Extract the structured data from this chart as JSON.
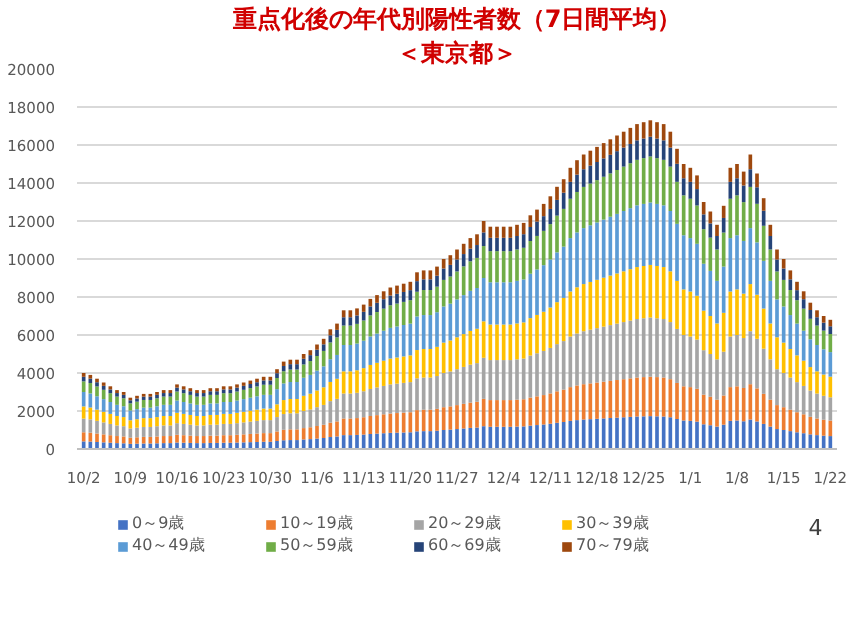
{
  "chart_data": {
    "type": "bar",
    "stacked": true,
    "title": "重点化後の年代別陽性者数（7日間平均）",
    "subtitle": "＜東京都＞",
    "annotations": [
      "4"
    ],
    "categories": [
      "10/2",
      null,
      null,
      null,
      null,
      null,
      null,
      "10/9",
      null,
      null,
      null,
      null,
      null,
      null,
      "10/16",
      null,
      null,
      null,
      null,
      null,
      null,
      "10/23",
      null,
      null,
      null,
      null,
      null,
      null,
      "10/30",
      null,
      null,
      null,
      null,
      null,
      null,
      "11/6",
      null,
      null,
      null,
      null,
      null,
      null,
      "11/13",
      null,
      null,
      null,
      null,
      null,
      null,
      "11/20",
      null,
      null,
      null,
      null,
      null,
      null,
      "11/27",
      null,
      null,
      null,
      null,
      null,
      null,
      "12/4",
      null,
      null,
      null,
      null,
      null,
      null,
      "12/11",
      null,
      null,
      null,
      null,
      null,
      null,
      "12/18",
      null,
      null,
      null,
      null,
      null,
      null,
      "12/25",
      null,
      null,
      null,
      null,
      null,
      null,
      "1/1",
      null,
      null,
      null,
      null,
      null,
      null,
      "1/8",
      null,
      null,
      null,
      null,
      null,
      null,
      "1/15",
      null,
      null,
      null,
      null,
      null,
      null,
      "1/22"
    ],
    "ylim": [
      0,
      20000
    ],
    "yticks": [
      0,
      2000,
      4000,
      6000,
      8000,
      10000,
      12000,
      14000,
      16000,
      18000,
      20000
    ],
    "grid": "y",
    "legend": "bottom",
    "series": [
      {
        "name": "0～9歳",
        "color": "#4472c4",
        "values": [
          400,
          390,
          370,
          350,
          330,
          310,
          300,
          270,
          280,
          290,
          290,
          300,
          310,
          310,
          340,
          330,
          320,
          310,
          310,
          320,
          320,
          330,
          330,
          340,
          350,
          360,
          370,
          380,
          380,
          420,
          460,
          470,
          470,
          500,
          520,
          550,
          580,
          630,
          660,
          730,
          730,
          740,
          760,
          790,
          810,
          830,
          850,
          860,
          870,
          880,
          930,
          940,
          940,
          960,
          1000,
          1020,
          1050,
          1080,
          1110,
          1130,
          1200,
          1170,
          1170,
          1170,
          1170,
          1180,
          1190,
          1230,
          1260,
          1290,
          1330,
          1380,
          1420,
          1480,
          1520,
          1550,
          1570,
          1590,
          1610,
          1630,
          1650,
          1670,
          1690,
          1710,
          1720,
          1730,
          1720,
          1710,
          1670,
          1580,
          1500,
          1480,
          1440,
          1300,
          1250,
          1180,
          1280,
          1480,
          1500,
          1460,
          1550,
          1450,
          1320,
          1180,
          1050,
          1000,
          940,
          880,
          830,
          770,
          730,
          700,
          680
        ]
      },
      {
        "name": "10～19歳",
        "color": "#ed7d31",
        "values": [
          480,
          468,
          444,
          420,
          396,
          372,
          360,
          324,
          336,
          348,
          348,
          360,
          372,
          372,
          408,
          396,
          384,
          372,
          372,
          384,
          384,
          396,
          396,
          408,
          420,
          432,
          444,
          456,
          456,
          504,
          552,
          564,
          564,
          600,
          624,
          660,
          696,
          756,
          792,
          876,
          876,
          888,
          912,
          948,
          972,
          996,
          1020,
          1032,
          1044,
          1056,
          1116,
          1128,
          1128,
          1152,
          1200,
          1224,
          1260,
          1296,
          1332,
          1356,
          1440,
          1404,
          1404,
          1404,
          1404,
          1416,
          1428,
          1476,
          1512,
          1548,
          1596,
          1656,
          1704,
          1776,
          1824,
          1860,
          1884,
          1908,
          1932,
          1956,
          1980,
          2004,
          2028,
          2052,
          2064,
          2076,
          2064,
          2052,
          2004,
          1896,
          1800,
          1776,
          1728,
          1560,
          1500,
          1416,
          1536,
          1776,
          1800,
          1752,
          1860,
          1740,
          1584,
          1416,
          1260,
          1200,
          1128,
          1056,
          996,
          924,
          876,
          840,
          816
        ]
      },
      {
        "name": "20～29歳",
        "color": "#a5a5a5",
        "values": [
          720,
          702,
          666,
          630,
          594,
          558,
          540,
          486,
          504,
          522,
          522,
          540,
          558,
          558,
          612,
          594,
          576,
          558,
          558,
          576,
          576,
          594,
          594,
          612,
          630,
          648,
          666,
          684,
          684,
          756,
          828,
          846,
          846,
          900,
          936,
          990,
          1044,
          1134,
          1188,
          1314,
          1314,
          1332,
          1368,
          1422,
          1458,
          1494,
          1530,
          1548,
          1566,
          1584,
          1674,
          1692,
          1692,
          1728,
          1800,
          1836,
          1890,
          1944,
          1998,
          2034,
          2160,
          2106,
          2106,
          2106,
          2106,
          2124,
          2142,
          2214,
          2268,
          2322,
          2394,
          2484,
          2556,
          2664,
          2736,
          2790,
          2826,
          2862,
          2898,
          2934,
          2970,
          3006,
          3042,
          3078,
          3096,
          3114,
          3096,
          3078,
          3006,
          2844,
          2700,
          2664,
          2592,
          2340,
          2250,
          2124,
          2304,
          2664,
          2700,
          2628,
          2790,
          2610,
          2376,
          2124,
          1890,
          1800,
          1692,
          1584,
          1494,
          1386,
          1314,
          1260,
          1224
        ]
      },
      {
        "name": "30～39歳",
        "color": "#ffc000",
        "values": [
          640,
          624,
          592,
          560,
          528,
          496,
          480,
          432,
          448,
          464,
          464,
          480,
          496,
          496,
          544,
          528,
          512,
          496,
          496,
          512,
          512,
          528,
          528,
          544,
          560,
          576,
          592,
          608,
          608,
          672,
          736,
          752,
          752,
          800,
          832,
          880,
          928,
          1008,
          1056,
          1168,
          1168,
          1184,
          1216,
          1264,
          1296,
          1328,
          1360,
          1376,
          1392,
          1408,
          1488,
          1504,
          1504,
          1536,
          1600,
          1632,
          1680,
          1728,
          1776,
          1808,
          1920,
          1872,
          1872,
          1872,
          1872,
          1888,
          1904,
          1968,
          2016,
          2064,
          2128,
          2208,
          2272,
          2368,
          2432,
          2480,
          2512,
          2544,
          2576,
          2608,
          2640,
          2672,
          2704,
          2736,
          2752,
          2768,
          2752,
          2736,
          2672,
          2528,
          2400,
          2368,
          2304,
          2080,
          2000,
          1888,
          2048,
          2368,
          2400,
          2336,
          2480,
          2320,
          2112,
          1888,
          1680,
          1600,
          1504,
          1408,
          1328,
          1232,
          1168,
          1120,
          1088
        ]
      },
      {
        "name": "40～49歳",
        "color": "#5b9bd5",
        "values": [
          760,
          741,
          703,
          665,
          627,
          589,
          570,
          513,
          532,
          551,
          551,
          570,
          589,
          589,
          646,
          627,
          608,
          589,
          589,
          608,
          608,
          627,
          627,
          646,
          665,
          684,
          703,
          722,
          722,
          798,
          874,
          893,
          893,
          950,
          988,
          1045,
          1102,
          1197,
          1254,
          1387,
          1387,
          1406,
          1444,
          1501,
          1539,
          1577,
          1615,
          1634,
          1653,
          1672,
          1767,
          1786,
          1786,
          1824,
          1900,
          1938,
          1995,
          2052,
          2109,
          2147,
          2280,
          2223,
          2223,
          2223,
          2223,
          2242,
          2261,
          2337,
          2394,
          2451,
          2527,
          2622,
          2698,
          2812,
          2888,
          2945,
          2983,
          3021,
          3059,
          3097,
          3135,
          3173,
          3211,
          3249,
          3268,
          3287,
          3268,
          3249,
          3173,
          3002,
          2850,
          2812,
          2736,
          2470,
          2375,
          2242,
          2432,
          2812,
          2850,
          2774,
          2945,
          2755,
          2508,
          2242,
          1995,
          1900,
          1786,
          1672,
          1577,
          1463,
          1387,
          1330,
          1292
        ]
      },
      {
        "name": "50～59歳",
        "color": "#70ad47",
        "values": [
          560,
          546,
          518,
          490,
          462,
          434,
          420,
          378,
          392,
          406,
          406,
          420,
          434,
          434,
          476,
          462,
          448,
          434,
          434,
          448,
          448,
          462,
          462,
          476,
          490,
          504,
          518,
          532,
          532,
          588,
          644,
          658,
          658,
          700,
          728,
          770,
          812,
          882,
          924,
          1022,
          1022,
          1036,
          1064,
          1106,
          1134,
          1162,
          1190,
          1204,
          1218,
          1232,
          1302,
          1316,
          1316,
          1344,
          1400,
          1428,
          1470,
          1512,
          1554,
          1582,
          1680,
          1638,
          1638,
          1638,
          1638,
          1652,
          1666,
          1722,
          1764,
          1806,
          1862,
          1932,
          1988,
          2072,
          2128,
          2170,
          2198,
          2226,
          2254,
          2282,
          2310,
          2338,
          2366,
          2394,
          2408,
          2422,
          2408,
          2394,
          2338,
          2212,
          2100,
          2072,
          2016,
          1820,
          1750,
          1652,
          1792,
          2072,
          2100,
          2044,
          2170,
          2030,
          1848,
          1652,
          1470,
          1400,
          1316,
          1232,
          1162,
          1078,
          1022,
          980,
          952
        ]
      },
      {
        "name": "60～69歳",
        "color": "#264478",
        "values": [
          240,
          234,
          222,
          210,
          198,
          186,
          180,
          162,
          168,
          174,
          174,
          180,
          186,
          186,
          204,
          198,
          192,
          186,
          186,
          192,
          192,
          198,
          198,
          204,
          210,
          216,
          222,
          228,
          228,
          252,
          276,
          282,
          282,
          300,
          312,
          330,
          348,
          378,
          396,
          438,
          438,
          444,
          456,
          474,
          486,
          498,
          510,
          516,
          522,
          528,
          558,
          564,
          564,
          576,
          600,
          612,
          630,
          648,
          666,
          678,
          720,
          702,
          702,
          702,
          702,
          708,
          714,
          738,
          756,
          774,
          798,
          828,
          852,
          888,
          912,
          930,
          942,
          954,
          966,
          978,
          990,
          1002,
          1014,
          1026,
          1032,
          1038,
          1032,
          1026,
          1002,
          948,
          900,
          888,
          864,
          780,
          750,
          708,
          768,
          888,
          900,
          876,
          930,
          870,
          792,
          708,
          630,
          600,
          564,
          528,
          498,
          462,
          438,
          420,
          408
        ]
      },
      {
        "name": "70～79歳",
        "color": "#9e480e",
        "values": [
          200,
          195,
          185,
          175,
          165,
          155,
          150,
          135,
          140,
          145,
          145,
          150,
          155,
          155,
          170,
          165,
          160,
          155,
          155,
          160,
          160,
          165,
          165,
          170,
          175,
          180,
          185,
          190,
          190,
          210,
          230,
          235,
          235,
          250,
          260,
          275,
          290,
          315,
          330,
          365,
          365,
          370,
          380,
          395,
          405,
          415,
          425,
          430,
          435,
          440,
          465,
          470,
          470,
          480,
          500,
          510,
          525,
          540,
          555,
          565,
          600,
          585,
          585,
          585,
          585,
          590,
          595,
          615,
          630,
          645,
          665,
          690,
          710,
          740,
          760,
          775,
          785,
          795,
          805,
          815,
          825,
          835,
          845,
          855,
          860,
          865,
          860,
          855,
          835,
          790,
          750,
          740,
          720,
          650,
          625,
          590,
          640,
          740,
          750,
          730,
          775,
          725,
          660,
          590,
          525,
          500,
          470,
          440,
          415,
          385,
          365,
          350,
          340
        ]
      }
    ]
  }
}
